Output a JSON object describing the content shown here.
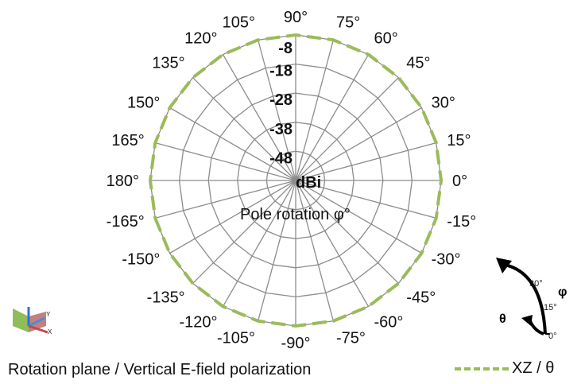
{
  "chart_data": {
    "type": "polar",
    "units_label": "dBi",
    "center_label": "Pole rotation φ°",
    "radial_ticks": [
      "-8",
      "-18",
      "-28",
      "-38",
      "-48"
    ],
    "radial_range": [
      -48,
      -8
    ],
    "angle_labels": [
      "0°",
      "15°",
      "30°",
      "45°",
      "60°",
      "75°",
      "90°",
      "105°",
      "120°",
      "135°",
      "150°",
      "165°",
      "180°",
      "-165°",
      "-150°",
      "-135°",
      "-120°",
      "-105°",
      "-90°",
      "-75°",
      "-60°",
      "-45°",
      "-30°",
      "-15°"
    ],
    "angles_deg": [
      0,
      15,
      30,
      45,
      60,
      75,
      90,
      105,
      120,
      135,
      150,
      165,
      180,
      -165,
      -150,
      -135,
      -120,
      -105,
      -90,
      -75,
      -60,
      -45,
      -30,
      -15
    ],
    "series": [
      {
        "name": "XZ / θ",
        "color": "#9bbb59",
        "values": [
          -8,
          -8,
          -8,
          -8,
          -8,
          -8,
          -8,
          -8,
          -8,
          -8,
          -8,
          -8,
          -8,
          -8,
          -8,
          -8,
          -8,
          -8,
          -8,
          -8,
          -8,
          -8,
          -8,
          -8
        ]
      }
    ],
    "grid": true
  },
  "caption": "Rotation plane / Vertical E-field polarization",
  "legend": {
    "label": "XZ / θ",
    "color": "#9bbb59"
  },
  "rotation_icon": {
    "phi_label": "φ",
    "theta_label": "θ",
    "ticks": [
      "30°",
      "15°",
      "0°"
    ]
  },
  "axes_icon": {
    "name": "axes-orientation-icon"
  }
}
